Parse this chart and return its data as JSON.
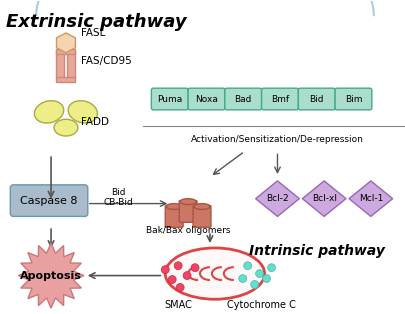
{
  "title": "Extrinsic pathway",
  "intrinsic_label": "Intrinsic pathway",
  "bg_color": "#ffffff",
  "bh3_proteins": [
    "Puma",
    "Noxa",
    "Bad",
    "Bmf",
    "Bid",
    "Bim"
  ],
  "bcl2_proteins": [
    "Bcl-2",
    "Bcl-xl",
    "Mcl-1"
  ],
  "bh3_box_color": "#aaddcc",
  "bh3_box_edge": "#44aa88",
  "bcl2_diamond_color": "#ccaadd",
  "bcl2_diamond_edge": "#9966bb",
  "caspase_color": "#aabbcc",
  "caspase_edge": "#6699aa",
  "apoptosis_color": "#e8a0a0",
  "apoptosis_edge": "#cc7777",
  "arrow_color": "#555555",
  "fas_bar_color": "#e8a898",
  "fas_bar_edge": "#cc8878",
  "hex_color": "#f5d5b0",
  "hex_edge": "#cc9966",
  "ellipse_color": "#eeee88",
  "ellipse_edge": "#aaaa44",
  "cyl_color": "#cc7766",
  "cyl_edge": "#aa5544",
  "smac_color": "#ee4466",
  "smac_edge": "#cc2244",
  "cytc_color": "#66ddcc",
  "cytc_edge": "#44bbaa",
  "mito_edge": "#dd4444",
  "arc_color": "#aaccdd",
  "sep_color": "#888888",
  "activation_text": "Activation/Sensitization/De-repression",
  "fasl_text": "FASL",
  "fascd95_text": "FAS/CD95",
  "fadd_text": "FADD",
  "caspase8_text": "Caspase 8",
  "apoptosis_text": "Apoptosis",
  "bid_label": "Bid",
  "cbbid_label": "CB-Bid",
  "bak_bax_text": "Bak/Bax oligomers",
  "smac_text": "SMAC",
  "cytc_text": "Cytochrome C"
}
